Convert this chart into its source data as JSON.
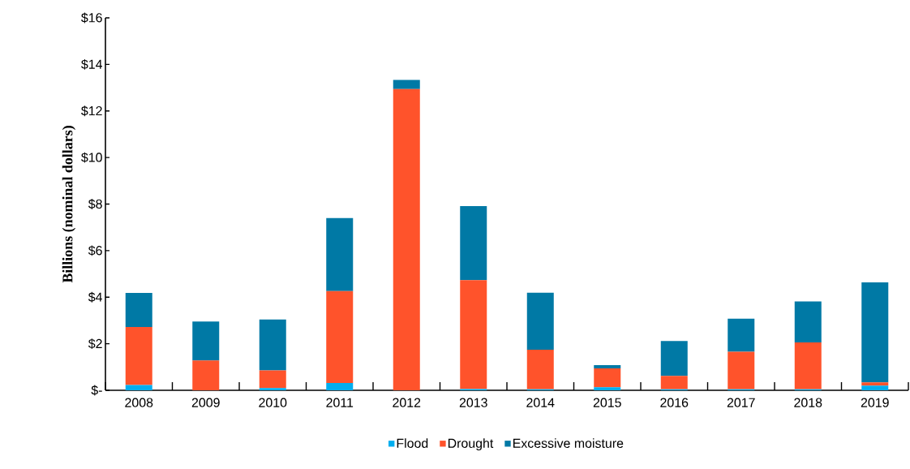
{
  "chart_data": {
    "type": "bar",
    "stacked": true,
    "ylabel": "Billions (nominal dollars)",
    "categories": [
      "2008",
      "2009",
      "2010",
      "2011",
      "2012",
      "2013",
      "2014",
      "2015",
      "2016",
      "2017",
      "2018",
      "2019"
    ],
    "series": [
      {
        "name": "Flood",
        "color": "#00aeef",
        "values": [
          0.23,
          0,
          0.1,
          0.31,
          0,
          0.05,
          0.04,
          0.13,
          0.04,
          0.04,
          0.04,
          0.2
        ]
      },
      {
        "name": "Drought",
        "color": "#ff532b",
        "values": [
          2.49,
          1.28,
          0.75,
          3.95,
          12.94,
          4.68,
          1.7,
          0.81,
          0.58,
          1.62,
          2.02,
          0.14
        ]
      },
      {
        "name": "Excessive moisture",
        "color": "#0079a5",
        "values": [
          1.46,
          1.67,
          2.19,
          3.14,
          0.39,
          3.18,
          2.45,
          0.14,
          1.5,
          1.42,
          1.76,
          4.3
        ]
      }
    ],
    "ylim": [
      0,
      16
    ],
    "yticks": [
      {
        "value": 0,
        "label": "$-"
      },
      {
        "value": 2,
        "label": "$2"
      },
      {
        "value": 4,
        "label": "$4"
      },
      {
        "value": 6,
        "label": "$6"
      },
      {
        "value": 8,
        "label": "$8"
      },
      {
        "value": 10,
        "label": "$10"
      },
      {
        "value": 12,
        "label": "$12"
      },
      {
        "value": 14,
        "label": "$14"
      },
      {
        "value": 16,
        "label": "$16"
      }
    ],
    "grid": false,
    "legend": "bottom"
  }
}
